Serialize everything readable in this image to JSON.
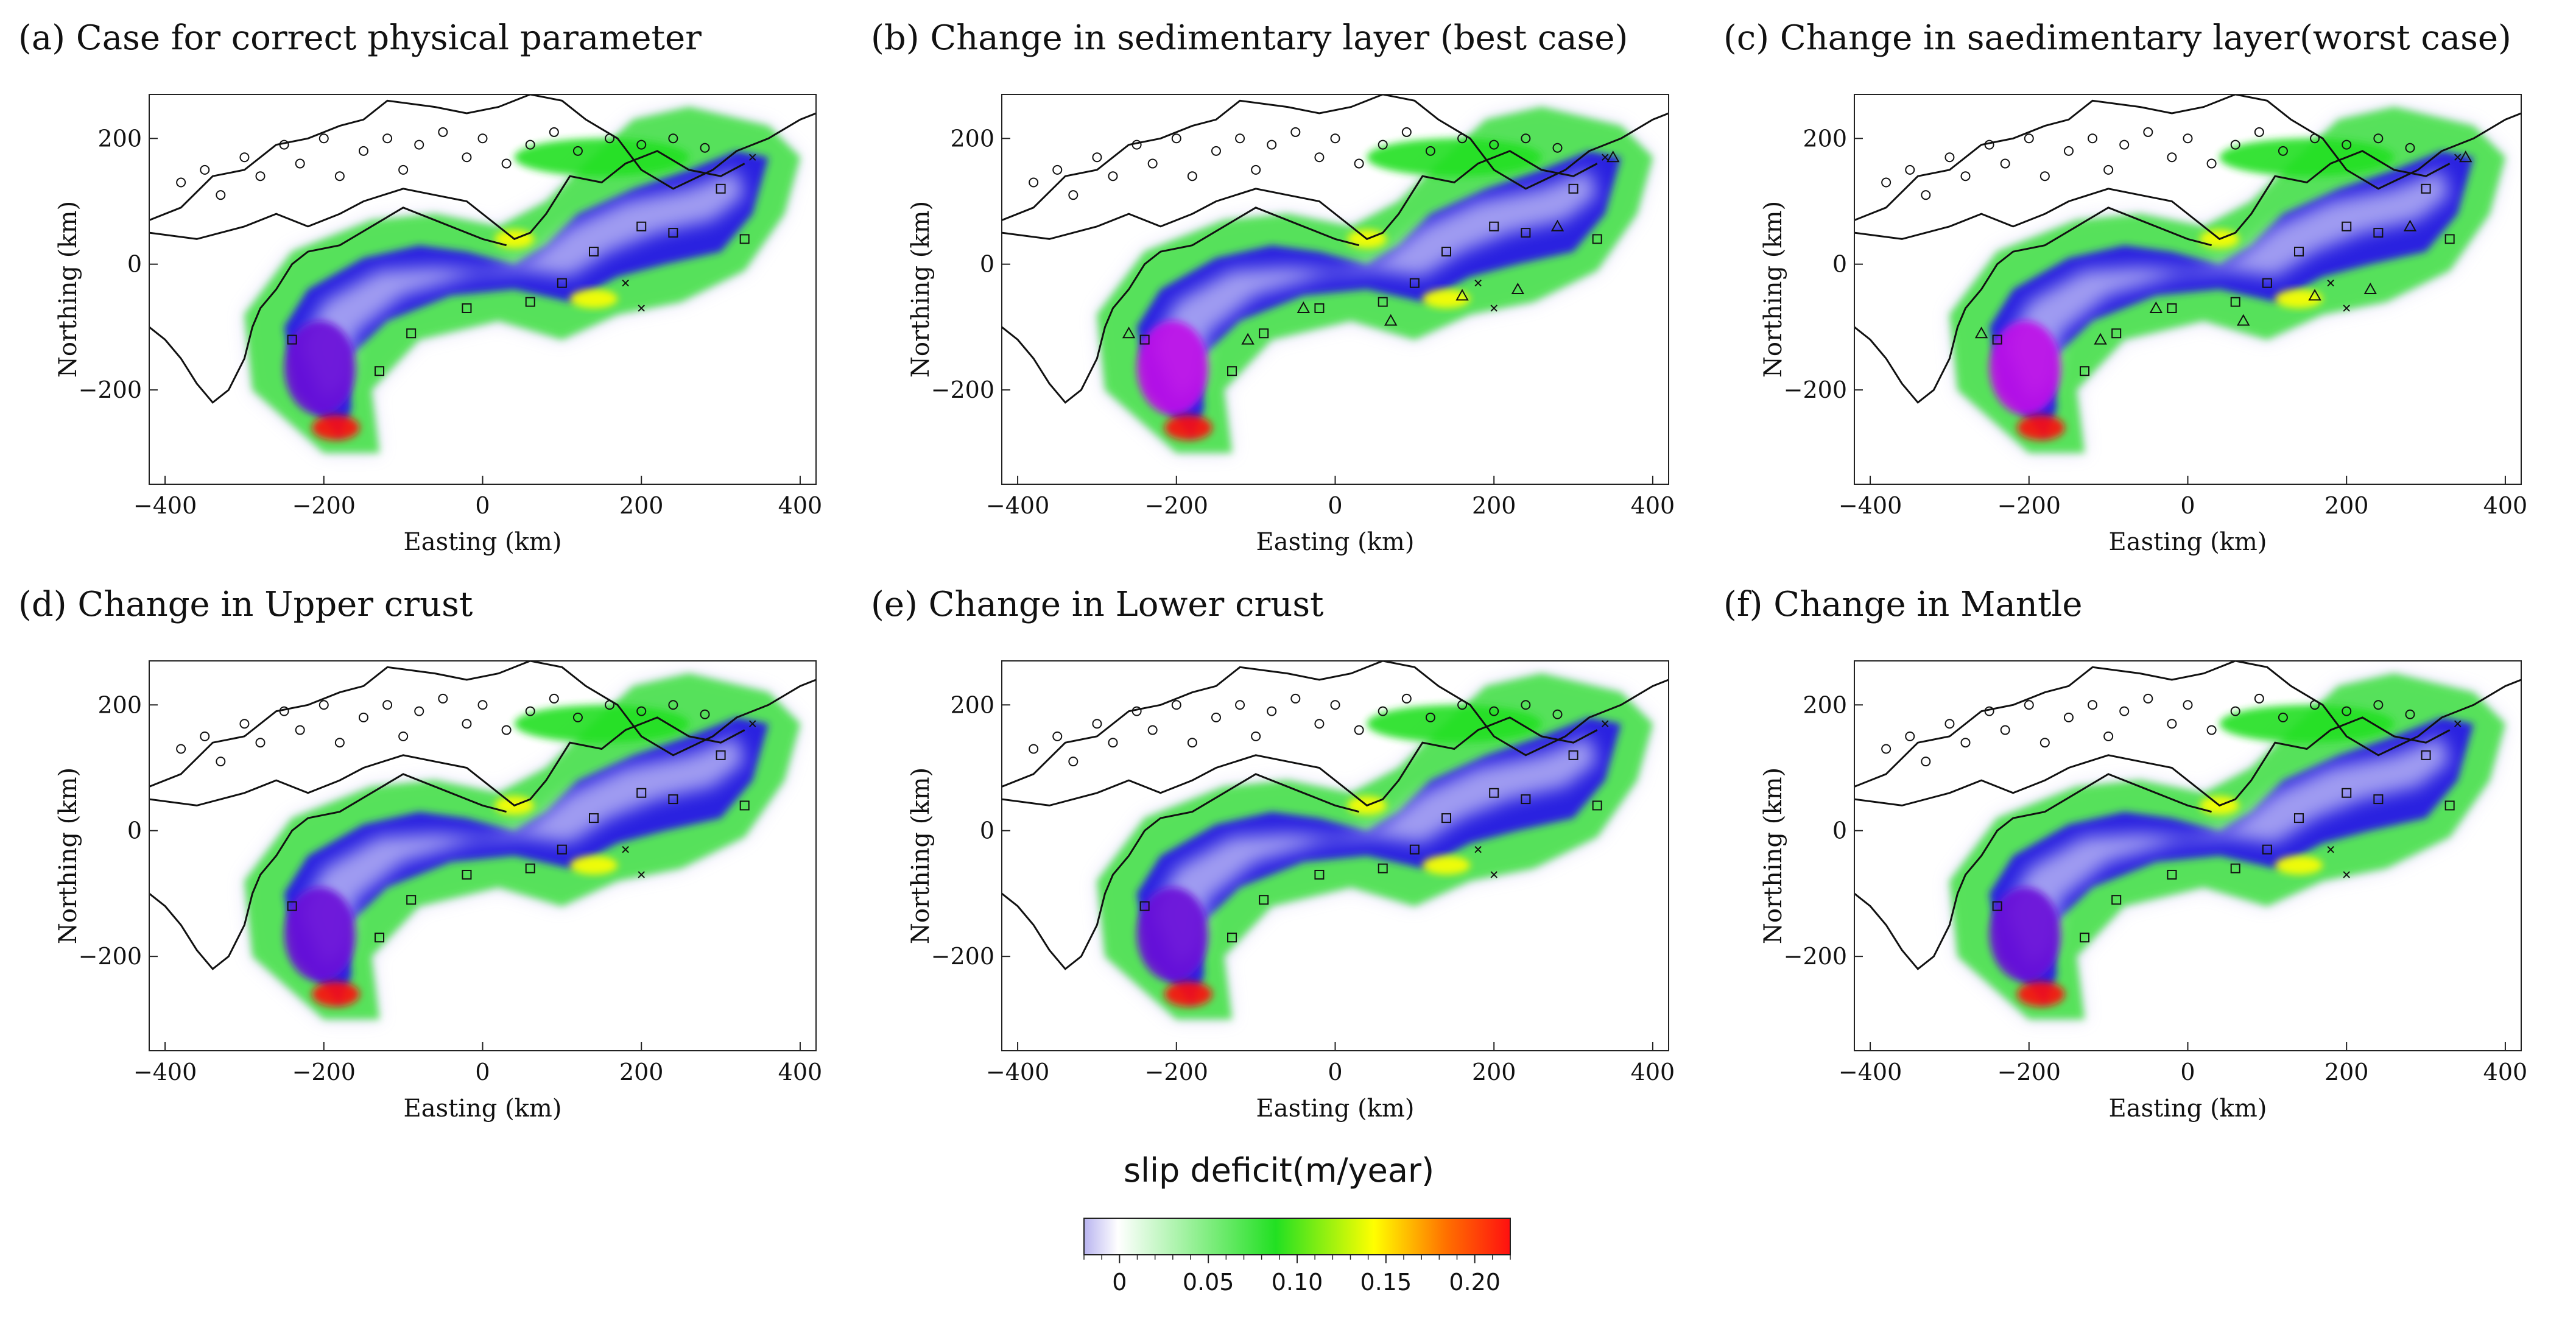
{
  "panels": [
    {
      "id": "a",
      "title": "(a) Case for correct physical parameter",
      "variant": "baseline",
      "markers": [
        "circle",
        "square",
        "cross"
      ]
    },
    {
      "id": "b",
      "title": "(b) Change in sedimentary layer (best case)",
      "variant": "sed",
      "markers": [
        "circle",
        "square",
        "triangle",
        "cross"
      ]
    },
    {
      "id": "c",
      "title": "(c) Change in saedimentary layer(worst case)",
      "variant": "sed",
      "markers": [
        "circle",
        "square",
        "triangle",
        "cross"
      ]
    },
    {
      "id": "d",
      "title": "(d) Change in Upper crust",
      "variant": "baseline",
      "markers": [
        "circle",
        "square",
        "cross"
      ]
    },
    {
      "id": "e",
      "title": "(e) Change in Lower crust",
      "variant": "baseline",
      "markers": [
        "circle",
        "square",
        "cross"
      ]
    },
    {
      "id": "f",
      "title": "(f) Change in Mantle",
      "variant": "baseline",
      "markers": [
        "circle",
        "square",
        "cross"
      ]
    }
  ],
  "chart_data": {
    "type": "heatmap",
    "description_fields": "slip deficit maps, 2x3 panels",
    "xlabel": "Easting (km)",
    "ylabel": "Northing (km)",
    "xlim": [
      -420,
      420
    ],
    "ylim": [
      -350,
      270
    ],
    "xticks": [
      -400,
      -200,
      0,
      200,
      400
    ],
    "xtick_labels": [
      "−400",
      "−200",
      "0",
      "200",
      "400"
    ],
    "yticks": [
      200,
      0,
      -200
    ],
    "ytick_labels": [
      "200",
      "0",
      "−200"
    ],
    "colorbar": {
      "title": "slip deficit(m/year)",
      "range": [
        -0.02,
        0.22
      ],
      "ticks": [
        0,
        0.05,
        0.1,
        0.15,
        0.2
      ],
      "tick_labels": [
        "0",
        "0.05",
        "0.10",
        "0.15",
        "0.20"
      ],
      "colors": [
        "#b9b4f0",
        "#ffffff",
        "#22e022",
        "#ffff00",
        "#ff7000",
        "#ff1010"
      ],
      "stops": [
        0.0,
        0.08,
        0.45,
        0.68,
        0.85,
        1.0
      ]
    },
    "hotspots": [
      {
        "x": -205,
        "y": -165,
        "value": -0.05,
        "rx": 45,
        "ry": 75
      },
      {
        "x": -185,
        "y": -260,
        "value": 0.19,
        "rx": 30,
        "ry": 20
      },
      {
        "x": 140,
        "y": -55,
        "value": 0.14,
        "rx": 30,
        "ry": 15
      },
      {
        "x": 40,
        "y": 40,
        "value": 0.12,
        "rx": 25,
        "ry": 15
      },
      {
        "x": 150,
        "y": 170,
        "value": 0.08,
        "rx": 110,
        "ry": 30
      }
    ],
    "stations_land_sample": [
      [
        -380,
        130
      ],
      [
        -350,
        150
      ],
      [
        -330,
        110
      ],
      [
        -300,
        170
      ],
      [
        -280,
        140
      ],
      [
        -250,
        190
      ],
      [
        -230,
        160
      ],
      [
        -200,
        200
      ],
      [
        -180,
        140
      ],
      [
        -150,
        180
      ],
      [
        -120,
        200
      ],
      [
        -100,
        150
      ],
      [
        -80,
        190
      ],
      [
        -50,
        210
      ],
      [
        -20,
        170
      ],
      [
        0,
        200
      ],
      [
        30,
        160
      ],
      [
        60,
        190
      ],
      [
        90,
        210
      ],
      [
        120,
        180
      ],
      [
        160,
        200
      ],
      [
        200,
        190
      ],
      [
        240,
        200
      ],
      [
        280,
        185
      ]
    ],
    "stations_seafloor_sample": [
      [
        -240,
        -120
      ],
      [
        -130,
        -170
      ],
      [
        -90,
        -110
      ],
      [
        -20,
        -70
      ],
      [
        60,
        -60
      ],
      [
        100,
        -30
      ],
      [
        140,
        20
      ],
      [
        200,
        60
      ],
      [
        240,
        50
      ],
      [
        300,
        120
      ],
      [
        330,
        40
      ]
    ]
  }
}
